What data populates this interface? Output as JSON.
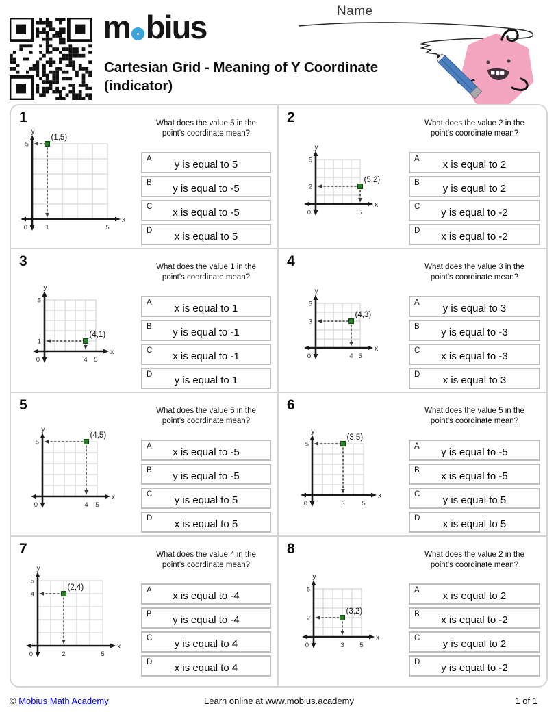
{
  "header": {
    "name_label": "Name",
    "logo": {
      "prefix": "m",
      "suffix": "bius"
    },
    "title": "Cartesian Grid - Meaning of Y Coordinate (indicator)"
  },
  "colors": {
    "accent_blue": "#3aa2da",
    "point_green": "#2a7e2a",
    "grid_gray": "#cccccc",
    "card_border_gray": "#d4d4d4",
    "link_blue": "#0000d6",
    "mascot_pink": "#f4a6c0",
    "pencil_blue": "#4d7fbe"
  },
  "questions": [
    {
      "number": "1",
      "prompt": "What does the value 5 in the point's coordinate mean?",
      "point_label": "(1,5)",
      "graph": {
        "type": "scatter",
        "point": [
          1,
          5
        ],
        "xlim": [
          0,
          5
        ],
        "ylim": [
          0,
          5
        ],
        "x_ticks": [
          1,
          5
        ],
        "y_ticks": [
          5
        ],
        "x_axis_label": "x",
        "y_axis_label": "y",
        "origin_label": "0",
        "grid": true
      },
      "answers": [
        {
          "letter": "A",
          "text": "y is equal to 5"
        },
        {
          "letter": "B",
          "text": "y is equal to -5"
        },
        {
          "letter": "C",
          "text": "x is equal to -5"
        },
        {
          "letter": "D",
          "text": "x is equal to 5"
        }
      ]
    },
    {
      "number": "2",
      "prompt": "What does the value 2 in the point's coordinate mean?",
      "point_label": "(5,2)",
      "graph": {
        "type": "scatter",
        "point": [
          5,
          2
        ],
        "xlim": [
          0,
          5
        ],
        "ylim": [
          0,
          5
        ],
        "x_ticks": [
          5
        ],
        "y_ticks": [
          2,
          5
        ],
        "x_axis_label": "x",
        "y_axis_label": "y",
        "origin_label": "0",
        "grid": true
      },
      "answers": [
        {
          "letter": "A",
          "text": "x is equal to 2"
        },
        {
          "letter": "B",
          "text": "y is equal to 2"
        },
        {
          "letter": "C",
          "text": "y is equal to -2"
        },
        {
          "letter": "D",
          "text": "x is equal to -2"
        }
      ]
    },
    {
      "number": "3",
      "prompt": "What does the value 1 in the point's coordinate mean?",
      "point_label": "(4,1)",
      "graph": {
        "type": "scatter",
        "point": [
          4,
          1
        ],
        "xlim": [
          0,
          5
        ],
        "ylim": [
          0,
          5
        ],
        "x_ticks": [
          4,
          5
        ],
        "y_ticks": [
          1,
          5
        ],
        "x_axis_label": "x",
        "y_axis_label": "y",
        "origin_label": "0",
        "grid": true
      },
      "answers": [
        {
          "letter": "A",
          "text": "x is equal to 1"
        },
        {
          "letter": "B",
          "text": "y is equal to -1"
        },
        {
          "letter": "C",
          "text": "x is equal to -1"
        },
        {
          "letter": "D",
          "text": "y is equal to 1"
        }
      ]
    },
    {
      "number": "4",
      "prompt": "What does the value 3 in the point's coordinate mean?",
      "point_label": "(4,3)",
      "graph": {
        "type": "scatter",
        "point": [
          4,
          3
        ],
        "xlim": [
          0,
          5
        ],
        "ylim": [
          0,
          5
        ],
        "x_ticks": [
          4,
          5
        ],
        "y_ticks": [
          3,
          5
        ],
        "x_axis_label": "x",
        "y_axis_label": "y",
        "origin_label": "0",
        "grid": true
      },
      "answers": [
        {
          "letter": "A",
          "text": "y is equal to 3"
        },
        {
          "letter": "B",
          "text": "y is equal to -3"
        },
        {
          "letter": "C",
          "text": "x is equal to -3"
        },
        {
          "letter": "D",
          "text": "x is equal to 3"
        }
      ]
    },
    {
      "number": "5",
      "prompt": "What does the value 5 in the point's coordinate mean?",
      "point_label": "(4,5)",
      "graph": {
        "type": "scatter",
        "point": [
          4,
          5
        ],
        "xlim": [
          0,
          5
        ],
        "ylim": [
          0,
          5
        ],
        "x_ticks": [
          4,
          5
        ],
        "y_ticks": [
          5
        ],
        "x_axis_label": "x",
        "y_axis_label": "y",
        "origin_label": "0",
        "grid": true
      },
      "answers": [
        {
          "letter": "A",
          "text": "x is equal to -5"
        },
        {
          "letter": "B",
          "text": "y is equal to -5"
        },
        {
          "letter": "C",
          "text": "y is equal to 5"
        },
        {
          "letter": "D",
          "text": "x is equal to 5"
        }
      ]
    },
    {
      "number": "6",
      "prompt": "What does the value 5 in the point's coordinate mean?",
      "point_label": "(3,5)",
      "graph": {
        "type": "scatter",
        "point": [
          3,
          5
        ],
        "xlim": [
          0,
          5
        ],
        "ylim": [
          0,
          5
        ],
        "x_ticks": [
          3,
          5
        ],
        "y_ticks": [
          5
        ],
        "x_axis_label": "x",
        "y_axis_label": "y",
        "origin_label": "0",
        "grid": true
      },
      "answers": [
        {
          "letter": "A",
          "text": "y is equal to -5"
        },
        {
          "letter": "B",
          "text": "x is equal to -5"
        },
        {
          "letter": "C",
          "text": "y is equal to 5"
        },
        {
          "letter": "D",
          "text": "x is equal to 5"
        }
      ]
    },
    {
      "number": "7",
      "prompt": "What does the value 4 in the point's coordinate mean?",
      "point_label": "(2,4)",
      "graph": {
        "type": "scatter",
        "point": [
          2,
          4
        ],
        "xlim": [
          0,
          5
        ],
        "ylim": [
          0,
          5
        ],
        "x_ticks": [
          2,
          5
        ],
        "y_ticks": [
          4,
          5
        ],
        "x_axis_label": "x",
        "y_axis_label": "y",
        "origin_label": "0",
        "grid": true
      },
      "answers": [
        {
          "letter": "A",
          "text": "x is equal to -4"
        },
        {
          "letter": "B",
          "text": "y is equal to -4"
        },
        {
          "letter": "C",
          "text": "y is equal to 4"
        },
        {
          "letter": "D",
          "text": "x is equal to 4"
        }
      ]
    },
    {
      "number": "8",
      "prompt": "What does the value 2 in the point's coordinate mean?",
      "point_label": "(3,2)",
      "graph": {
        "type": "scatter",
        "point": [
          3,
          2
        ],
        "xlim": [
          0,
          5
        ],
        "ylim": [
          0,
          5
        ],
        "x_ticks": [
          3,
          5
        ],
        "y_ticks": [
          2,
          5
        ],
        "x_axis_label": "x",
        "y_axis_label": "y",
        "origin_label": "0",
        "grid": true
      },
      "answers": [
        {
          "letter": "A",
          "text": "x is equal to 2"
        },
        {
          "letter": "B",
          "text": "x is equal to -2"
        },
        {
          "letter": "C",
          "text": "y is equal to 2"
        },
        {
          "letter": "D",
          "text": "y is equal to -2"
        }
      ]
    }
  ],
  "footer": {
    "copyright_symbol": "©",
    "link_text": "Mobius Math Academy",
    "center_text": "Learn online at www.mobius.academy",
    "page_text": "1 of 1"
  }
}
